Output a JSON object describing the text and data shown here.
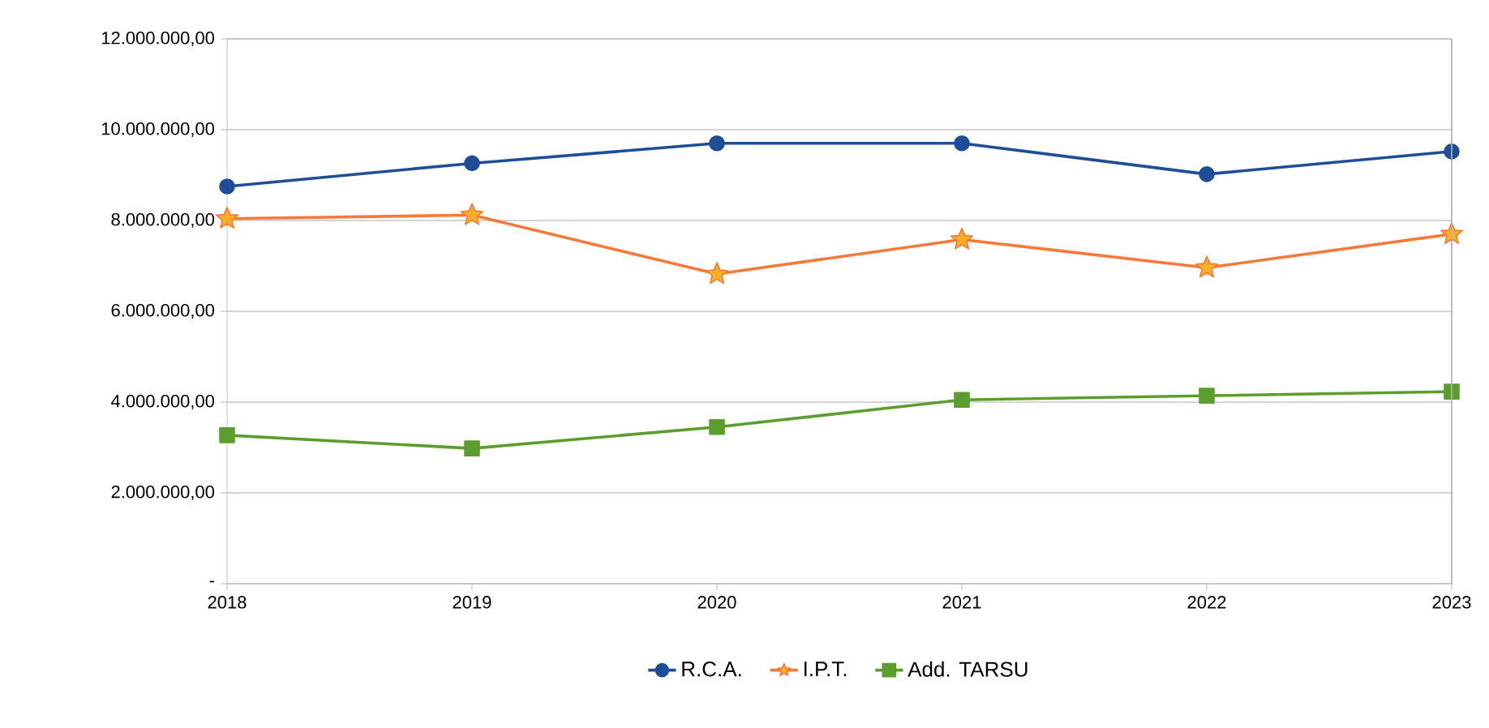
{
  "chart_data": {
    "type": "line",
    "categories": [
      "2018",
      "2019",
      "2020",
      "2021",
      "2022",
      "2023"
    ],
    "series": [
      {
        "name": "R.C.A.",
        "color": "#1f4e99",
        "marker": "circle",
        "values": [
          8750000,
          9260000,
          9700000,
          9700000,
          9020000,
          9520000
        ]
      },
      {
        "name": "I.P.T.",
        "color": "#f57a3a",
        "marker": "star",
        "values": [
          8040000,
          8120000,
          6820000,
          7580000,
          6960000,
          7700000
        ]
      },
      {
        "name": "Add. TARSU",
        "color": "#5c9e2e",
        "marker": "square",
        "values": [
          3270000,
          2980000,
          3450000,
          4050000,
          4140000,
          4230000
        ]
      }
    ],
    "ylim": [
      0,
      12000000
    ],
    "yticks": [
      {
        "value": 0,
        "label": "-"
      },
      {
        "value": 2000000,
        "label": "2.000.000,00"
      },
      {
        "value": 4000000,
        "label": "4.000.000,00"
      },
      {
        "value": 6000000,
        "label": "6.000.000,00"
      },
      {
        "value": 8000000,
        "label": "8.000.000,00"
      },
      {
        "value": 10000000,
        "label": "10.000.000,00"
      },
      {
        "value": 12000000,
        "label": "12.000.000,00"
      }
    ],
    "grid": "y",
    "legend": "bottom",
    "line_style": "solid"
  }
}
